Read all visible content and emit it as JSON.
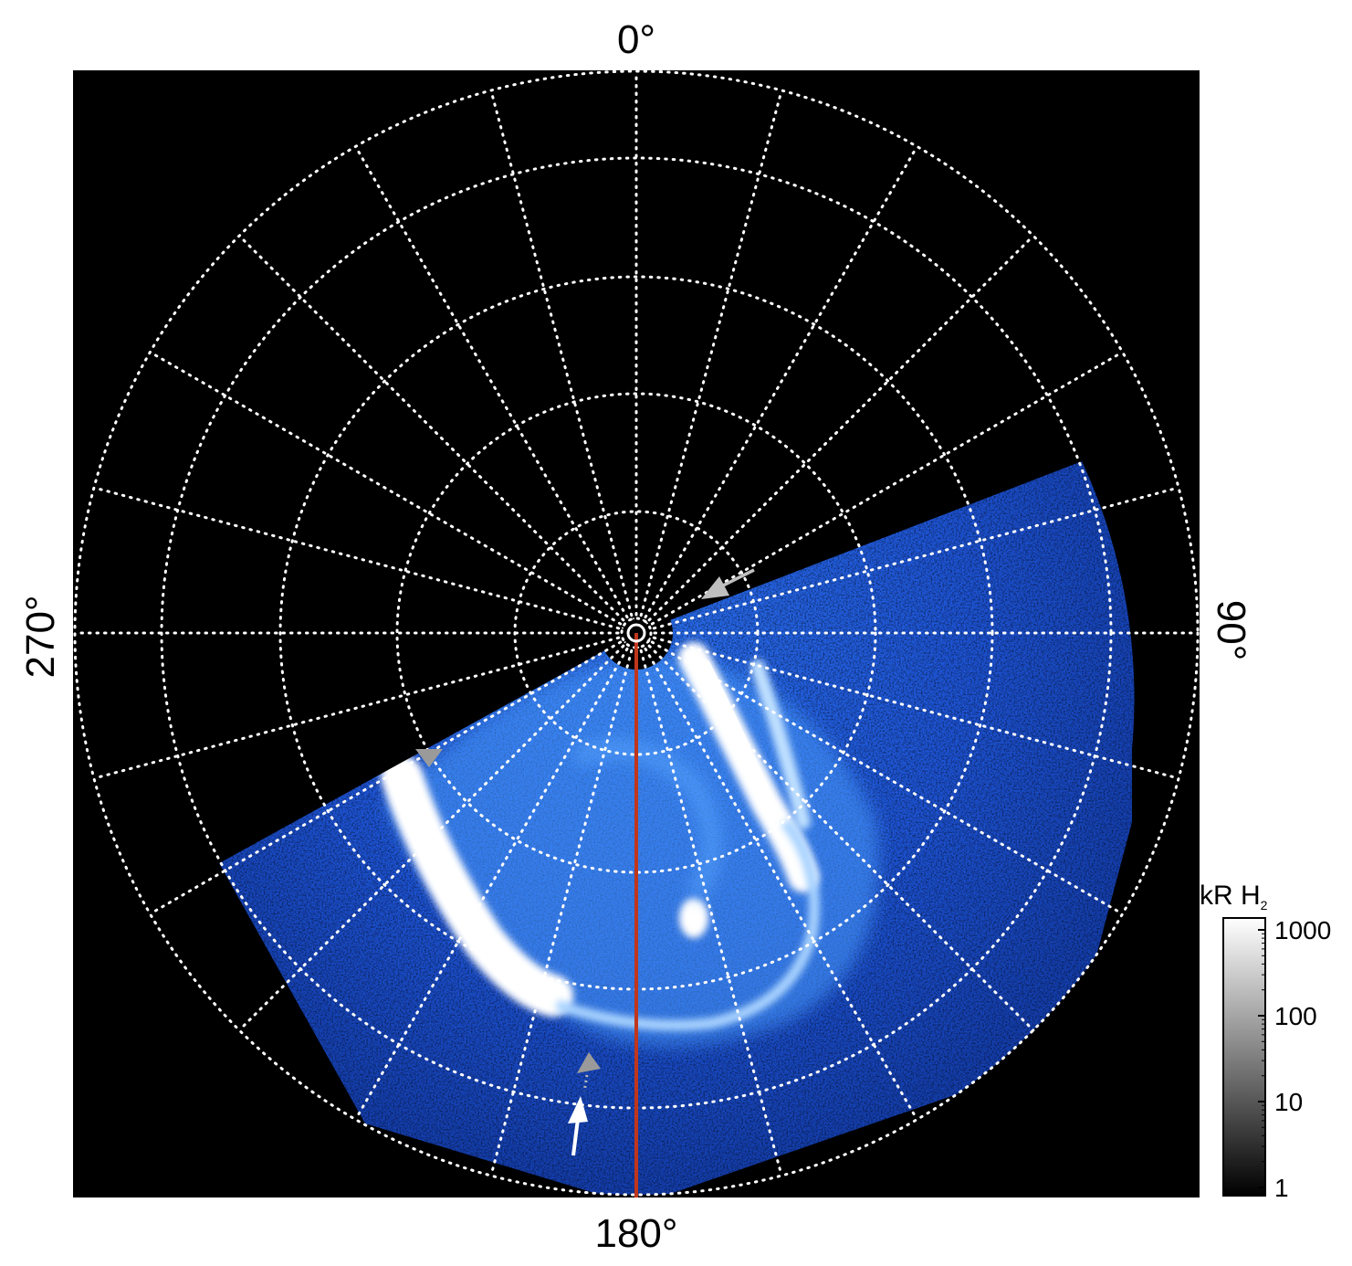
{
  "angle_labels": {
    "top": "0°",
    "right": "90°",
    "bottom": "180°",
    "left": "270°"
  },
  "colorbar": {
    "title": "kR H",
    "title_subscript": "2",
    "ticks": [
      "1000",
      "100",
      "10",
      "1"
    ],
    "tick_values": [
      1000,
      100,
      10,
      1
    ],
    "scale": "log",
    "colors": {
      "low": "#000000",
      "high": "#ffffff"
    }
  },
  "grid": {
    "spokes_every_deg": 15,
    "style": "dotted",
    "color": "#ffffff"
  },
  "colors": {
    "background": "#000000",
    "aurora_dim": "#1f4fd6",
    "aurora_mid": "#3f8cff",
    "aurora_bright": "#ffffff",
    "meridian_line": "#c0361c",
    "arrow_grey": "#bfbfbf",
    "arrow_white": "#ffffff"
  },
  "markers": [
    "grey-arrow",
    "grey-triangle",
    "grey-triangle",
    "white-arrow"
  ]
}
